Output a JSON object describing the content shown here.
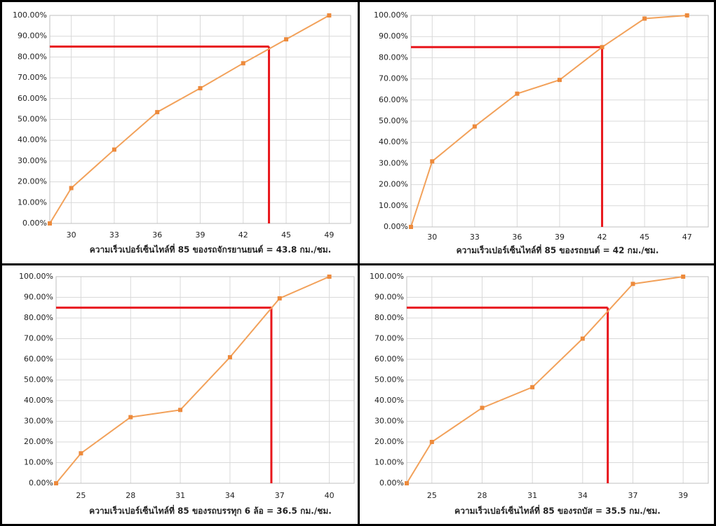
{
  "chart_data": [
    {
      "type": "line",
      "title": "ความเร็วเปอร์เซ็นไทล์ที่ 85 ของรถจักรยานยนต์ = 43.8 กม./ชม.",
      "categories": [
        null,
        "30",
        "33",
        "36",
        "39",
        "42",
        "45",
        "49"
      ],
      "values": [
        0,
        17,
        35.5,
        53.5,
        65,
        77,
        88.5,
        100
      ],
      "color": "#ed8a3c",
      "ylim": [
        0,
        100
      ],
      "yticks": [
        {
          "value": 0,
          "label": "0.00%"
        },
        {
          "value": 10,
          "label": "10.00%"
        },
        {
          "value": 20,
          "label": "20.00%"
        },
        {
          "value": 30,
          "label": "30.00%"
        },
        {
          "value": 40,
          "label": "40.00%"
        },
        {
          "value": 50,
          "label": "50.00%"
        },
        {
          "value": 60,
          "label": "60.00%"
        },
        {
          "value": 70,
          "label": "70.00%"
        },
        {
          "value": 80,
          "label": "80.00%"
        },
        {
          "value": 90,
          "label": "90.00%"
        },
        {
          "value": 100,
          "label": "100.00%"
        }
      ],
      "grid": true,
      "reference": {
        "percentile": 85,
        "value": 43.8,
        "color": "#e8161b"
      }
    },
    {
      "type": "line",
      "title": "ความเร็วเปอร์เซ็นไทล์ที่ 85 ของรถยนต์ = 42 กม./ชม.",
      "categories": [
        null,
        "30",
        "33",
        "36",
        "39",
        "42",
        "45",
        "47"
      ],
      "values": [
        0,
        31,
        47.5,
        63,
        69.5,
        85,
        98.5,
        100
      ],
      "color": "#ed8a3c",
      "ylim": [
        0,
        100
      ],
      "yticks": [
        {
          "value": 0,
          "label": "0.00%"
        },
        {
          "value": 10,
          "label": "10.00%"
        },
        {
          "value": 20,
          "label": "20.00%"
        },
        {
          "value": 30,
          "label": "30.00%"
        },
        {
          "value": 40,
          "label": "40.00%"
        },
        {
          "value": 50,
          "label": "50.00%"
        },
        {
          "value": 60,
          "label": "60.00%"
        },
        {
          "value": 70,
          "label": "70.00%"
        },
        {
          "value": 80,
          "label": "80.00%"
        },
        {
          "value": 90,
          "label": "90.00%"
        },
        {
          "value": 100,
          "label": "100.00%"
        }
      ],
      "grid": true,
      "reference": {
        "percentile": 85,
        "value": 42,
        "color": "#e8161b"
      }
    },
    {
      "type": "line",
      "title": "ความเร็วเปอร์เซ็นไทล์ที่ 85 ของรถบรรทุก 6 ล้อ = 36.5 กม./ชม.",
      "categories": [
        null,
        "25",
        "28",
        "31",
        "34",
        "37",
        "40"
      ],
      "values": [
        0,
        14.5,
        32,
        35.5,
        61,
        89.5,
        100
      ],
      "color": "#ed8a3c",
      "ylim": [
        0,
        100
      ],
      "yticks": [
        {
          "value": 0,
          "label": "0.00%"
        },
        {
          "value": 10,
          "label": "10.00%"
        },
        {
          "value": 20,
          "label": "20.00%"
        },
        {
          "value": 30,
          "label": "30.00%"
        },
        {
          "value": 40,
          "label": "40.00%"
        },
        {
          "value": 50,
          "label": "50.00%"
        },
        {
          "value": 60,
          "label": "60.00%"
        },
        {
          "value": 70,
          "label": "70.00%"
        },
        {
          "value": 80,
          "label": "80.00%"
        },
        {
          "value": 90,
          "label": "90.00%"
        },
        {
          "value": 100,
          "label": "100.00%"
        }
      ],
      "grid": true,
      "reference": {
        "percentile": 85,
        "value": 36.5,
        "color": "#e8161b"
      }
    },
    {
      "type": "line",
      "title": "ความเร็วเปอร์เซ็นไทล์ที่ 85 ของรถบัส = 35.5 กม./ชม.",
      "categories": [
        null,
        "25",
        "28",
        "31",
        "34",
        "37",
        "39"
      ],
      "values": [
        0,
        20,
        36.5,
        46.5,
        70,
        96.5,
        100
      ],
      "color": "#ed8a3c",
      "ylim": [
        0,
        100
      ],
      "yticks": [
        {
          "value": 0,
          "label": "0.00%"
        },
        {
          "value": 10,
          "label": "10.00%"
        },
        {
          "value": 20,
          "label": "20.00%"
        },
        {
          "value": 30,
          "label": "30.00%"
        },
        {
          "value": 40,
          "label": "40.00%"
        },
        {
          "value": 50,
          "label": "50.00%"
        },
        {
          "value": 60,
          "label": "60.00%"
        },
        {
          "value": 70,
          "label": "70.00%"
        },
        {
          "value": 80,
          "label": "80.00%"
        },
        {
          "value": 90,
          "label": "90.00%"
        },
        {
          "value": 100,
          "label": "100.00%"
        }
      ],
      "grid": true,
      "reference": {
        "percentile": 85,
        "value": 35.5,
        "color": "#e8161b"
      }
    }
  ]
}
